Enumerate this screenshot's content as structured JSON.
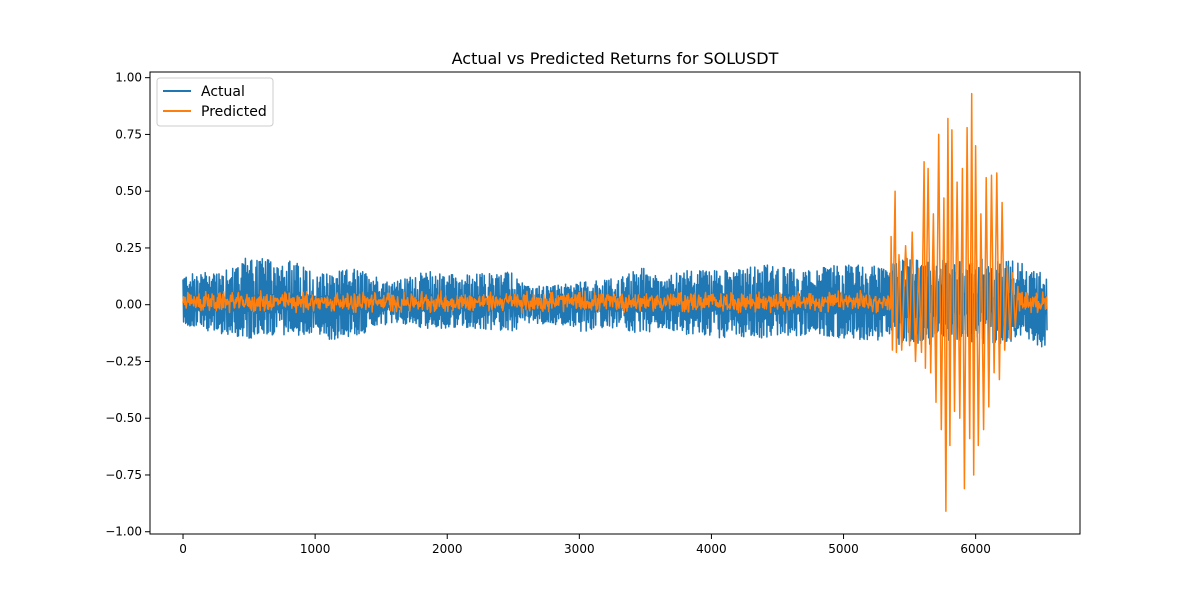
{
  "chart_data": {
    "type": "line",
    "title": "Actual vs Predicted Returns for SOLUSDT",
    "xlabel": "",
    "ylabel": "",
    "xlim": [
      -250,
      6790
    ],
    "ylim": [
      -1.01,
      1.025
    ],
    "xticks": [
      0,
      1000,
      2000,
      3000,
      4000,
      5000,
      6000
    ],
    "xtick_labels": [
      "0",
      "1000",
      "2000",
      "3000",
      "4000",
      "5000",
      "6000"
    ],
    "yticks": [
      1.0,
      0.75,
      0.5,
      0.25,
      0.0,
      -0.25,
      -0.5,
      -0.75,
      -1.0
    ],
    "ytick_labels": [
      "1.00",
      "0.75",
      "0.50",
      "0.25",
      "0.00",
      "−0.25",
      "−0.50",
      "−0.75",
      "−1.00"
    ],
    "grid": false,
    "legend_position": "upper-left",
    "series": [
      {
        "name": "Actual",
        "color": "#1f77b4",
        "x_start": 0,
        "x_end": 6540,
        "envelope": {
          "x": [
            0,
            300,
            400,
            500,
            700,
            800,
            1000,
            1100,
            1300,
            1600,
            1800,
            1900,
            2100,
            2300,
            2500,
            2600,
            2900,
            3000,
            3300,
            3500,
            3600,
            3800,
            4000,
            4200,
            4400,
            4600,
            4800,
            5000,
            5300,
            5500,
            5700,
            5900,
            6100,
            6300,
            6540
          ],
          "upper": [
            0.13,
            0.16,
            0.19,
            0.22,
            0.19,
            0.2,
            0.15,
            0.14,
            0.16,
            0.1,
            0.14,
            0.15,
            0.13,
            0.14,
            0.15,
            0.08,
            0.09,
            0.1,
            0.12,
            0.17,
            0.12,
            0.15,
            0.16,
            0.17,
            0.18,
            0.16,
            0.16,
            0.18,
            0.17,
            0.21,
            0.2,
            0.19,
            0.21,
            0.2,
            0.13
          ],
          "lower": [
            -0.09,
            -0.13,
            -0.14,
            -0.16,
            -0.13,
            -0.15,
            -0.12,
            -0.16,
            -0.14,
            -0.08,
            -0.1,
            -0.11,
            -0.1,
            -0.11,
            -0.12,
            -0.08,
            -0.09,
            -0.12,
            -0.1,
            -0.14,
            -0.1,
            -0.13,
            -0.15,
            -0.14,
            -0.15,
            -0.14,
            -0.13,
            -0.15,
            -0.16,
            -0.19,
            -0.17,
            -0.16,
            -0.18,
            -0.16,
            -0.19
          ]
        }
      },
      {
        "name": "Predicted",
        "color": "#ff7f0e",
        "x_start": 0,
        "x_end": 6540,
        "base_amplitude": 0.035,
        "peaks": [
          {
            "x": 5360,
            "y": 0.3
          },
          {
            "x": 5370,
            "y": -0.2
          },
          {
            "x": 5390,
            "y": 0.5
          },
          {
            "x": 5400,
            "y": -0.21
          },
          {
            "x": 5420,
            "y": 0.22
          },
          {
            "x": 5440,
            "y": -0.2
          },
          {
            "x": 5470,
            "y": 0.26
          },
          {
            "x": 5500,
            "y": -0.18
          },
          {
            "x": 5520,
            "y": 0.32
          },
          {
            "x": 5545,
            "y": -0.25
          },
          {
            "x": 5570,
            "y": 0.16
          },
          {
            "x": 5590,
            "y": -0.21
          },
          {
            "x": 5610,
            "y": 0.63
          },
          {
            "x": 5620,
            "y": -0.28
          },
          {
            "x": 5640,
            "y": 0.6
          },
          {
            "x": 5660,
            "y": -0.3
          },
          {
            "x": 5680,
            "y": 0.4
          },
          {
            "x": 5700,
            "y": -0.43
          },
          {
            "x": 5720,
            "y": 0.75
          },
          {
            "x": 5740,
            "y": -0.55
          },
          {
            "x": 5760,
            "y": 0.47
          },
          {
            "x": 5775,
            "y": -0.91
          },
          {
            "x": 5790,
            "y": 0.82
          },
          {
            "x": 5805,
            "y": -0.62
          },
          {
            "x": 5820,
            "y": 0.77
          },
          {
            "x": 5840,
            "y": -0.47
          },
          {
            "x": 5860,
            "y": 0.54
          },
          {
            "x": 5880,
            "y": -0.5
          },
          {
            "x": 5900,
            "y": 0.6
          },
          {
            "x": 5915,
            "y": -0.81
          },
          {
            "x": 5935,
            "y": 0.78
          },
          {
            "x": 5955,
            "y": -0.59
          },
          {
            "x": 5970,
            "y": 0.93
          },
          {
            "x": 5985,
            "y": -0.75
          },
          {
            "x": 6000,
            "y": 0.7
          },
          {
            "x": 6020,
            "y": -0.62
          },
          {
            "x": 6040,
            "y": 0.4
          },
          {
            "x": 6060,
            "y": -0.55
          },
          {
            "x": 6080,
            "y": 0.56
          },
          {
            "x": 6100,
            "y": -0.45
          },
          {
            "x": 6120,
            "y": 0.57
          },
          {
            "x": 6140,
            "y": -0.3
          },
          {
            "x": 6160,
            "y": 0.58
          },
          {
            "x": 6180,
            "y": -0.33
          },
          {
            "x": 6200,
            "y": 0.45
          },
          {
            "x": 6220,
            "y": -0.2
          },
          {
            "x": 6240,
            "y": 0.17
          },
          {
            "x": 6260,
            "y": -0.15
          },
          {
            "x": 6280,
            "y": 0.14
          },
          {
            "x": 6300,
            "y": -0.1
          },
          {
            "x": 6320,
            "y": 0.08
          }
        ]
      }
    ]
  }
}
